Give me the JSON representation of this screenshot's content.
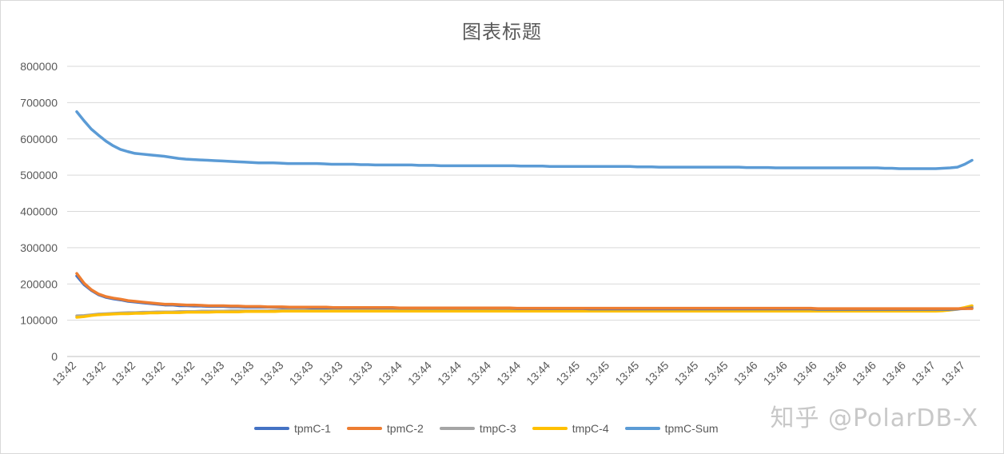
{
  "chart_data": {
    "type": "line",
    "title": "图表标题",
    "xlabel": "",
    "ylabel": "",
    "ylim": [
      0,
      800000
    ],
    "yticks": [
      0,
      100000,
      200000,
      300000,
      400000,
      500000,
      600000,
      700000,
      800000
    ],
    "tick_labels_x": [
      "13:42",
      "13:42",
      "13:42",
      "13:42",
      "13:42",
      "13:43",
      "13:43",
      "13:43",
      "13:43",
      "13:43",
      "13:43",
      "13:44",
      "13:44",
      "13:44",
      "13:44",
      "13:44",
      "13:44",
      "13:45",
      "13:45",
      "13:45",
      "13:45",
      "13:45",
      "13:45",
      "13:46",
      "13:46",
      "13:46",
      "13:46",
      "13:46",
      "13:46",
      "13:47",
      "13:47"
    ],
    "grid": true,
    "legend": "bottom",
    "series": [
      {
        "name": "tpmC-1",
        "color": "#4472C4",
        "values": [
          222000,
          198000,
          182000,
          170000,
          163000,
          159000,
          156000,
          152000,
          150000,
          148000,
          146000,
          144000,
          142000,
          142000,
          140000,
          140000,
          139000,
          139000,
          138000,
          138000,
          138000,
          137000,
          137000,
          136000,
          136000,
          136000,
          136000,
          136000,
          135000,
          135000,
          135000,
          135000,
          134000,
          134000,
          134000,
          134000,
          134000,
          134000,
          134000,
          134000,
          134000,
          134000,
          134000,
          134000,
          133000,
          133000,
          133000,
          133000,
          133000,
          133000,
          133000,
          133000,
          133000,
          133000,
          133000,
          133000,
          133000,
          133000,
          133000,
          133000,
          132000,
          132000,
          132000,
          132000,
          132000,
          132000,
          132000,
          132000,
          132000,
          132000,
          131000,
          131000,
          131000,
          131000,
          131000,
          131000,
          131000,
          131000,
          131000,
          131000,
          131000,
          131000,
          131000,
          131000,
          131000,
          131000,
          131000,
          131000,
          131000,
          131000,
          131000,
          131000,
          131000,
          131000,
          131000,
          131000,
          131000,
          131000,
          131000,
          131000,
          131000,
          130000,
          130000,
          130000,
          130000,
          130000,
          130000,
          130000,
          130000,
          130000,
          130000,
          130000,
          130000,
          130000,
          130000,
          130000,
          130000,
          130000,
          130000,
          130000,
          131000,
          132000,
          134000
        ]
      },
      {
        "name": "tpmC-2",
        "color": "#ED7D31",
        "values": [
          229000,
          202000,
          184000,
          172000,
          165000,
          161000,
          158000,
          154000,
          152000,
          150000,
          148000,
          146000,
          144000,
          144000,
          143000,
          142000,
          142000,
          141000,
          140000,
          140000,
          140000,
          139000,
          139000,
          138000,
          138000,
          138000,
          137000,
          137000,
          137000,
          136000,
          136000,
          136000,
          136000,
          136000,
          136000,
          135000,
          135000,
          135000,
          135000,
          135000,
          135000,
          135000,
          135000,
          135000,
          134000,
          134000,
          134000,
          134000,
          134000,
          134000,
          134000,
          134000,
          134000,
          134000,
          134000,
          134000,
          134000,
          134000,
          134000,
          134000,
          133000,
          133000,
          133000,
          133000,
          133000,
          133000,
          133000,
          133000,
          133000,
          133000,
          133000,
          133000,
          133000,
          133000,
          133000,
          133000,
          133000,
          133000,
          133000,
          133000,
          133000,
          133000,
          133000,
          133000,
          133000,
          133000,
          133000,
          133000,
          133000,
          133000,
          133000,
          133000,
          133000,
          133000,
          133000,
          133000,
          133000,
          133000,
          133000,
          133000,
          133000,
          132000,
          132000,
          132000,
          132000,
          132000,
          132000,
          132000,
          132000,
          132000,
          132000,
          132000,
          132000,
          132000,
          132000,
          132000,
          132000,
          132000,
          132000,
          132000,
          132000,
          132000,
          132000
        ]
      },
      {
        "name": "tmpC-3",
        "color": "#A5A5A5",
        "values": [
          112000,
          113000,
          115000,
          117000,
          118000,
          119000,
          120000,
          121000,
          121000,
          122000,
          122000,
          123000,
          123000,
          123000,
          124000,
          124000,
          124000,
          125000,
          125000,
          125000,
          125000,
          126000,
          126000,
          126000,
          126000,
          126000,
          126000,
          127000,
          127000,
          127000,
          127000,
          127000,
          127000,
          127000,
          127000,
          127000,
          127000,
          127000,
          127000,
          127000,
          127000,
          127000,
          127000,
          127000,
          127000,
          127000,
          127000,
          127000,
          127000,
          127000,
          127000,
          127000,
          127000,
          127000,
          127000,
          127000,
          127000,
          127000,
          127000,
          127000,
          127000,
          127000,
          127000,
          127000,
          127000,
          127000,
          127000,
          127000,
          127000,
          127000,
          127000,
          127000,
          127000,
          127000,
          127000,
          127000,
          127000,
          127000,
          127000,
          127000,
          127000,
          127000,
          127000,
          127000,
          127000,
          127000,
          127000,
          127000,
          127000,
          127000,
          127000,
          127000,
          127000,
          127000,
          127000,
          127000,
          127000,
          127000,
          127000,
          127000,
          127000,
          127000,
          127000,
          127000,
          127000,
          127000,
          127000,
          127000,
          127000,
          127000,
          127000,
          127000,
          127000,
          127000,
          127000,
          127000,
          127000,
          127000,
          127000,
          128000,
          130000,
          134000,
          139000
        ]
      },
      {
        "name": "tmpC-4",
        "color": "#FFC000",
        "values": [
          108000,
          110000,
          113000,
          115000,
          116000,
          117000,
          118000,
          118000,
          119000,
          119000,
          120000,
          120000,
          121000,
          121000,
          121000,
          122000,
          122000,
          122000,
          122000,
          123000,
          123000,
          123000,
          123000,
          124000,
          124000,
          124000,
          124000,
          124000,
          125000,
          125000,
          125000,
          125000,
          125000,
          125000,
          125000,
          125000,
          125000,
          125000,
          125000,
          125000,
          125000,
          125000,
          125000,
          125000,
          125000,
          125000,
          125000,
          125000,
          125000,
          125000,
          125000,
          125000,
          125000,
          125000,
          125000,
          125000,
          125000,
          125000,
          125000,
          125000,
          125000,
          125000,
          125000,
          125000,
          125000,
          125000,
          125000,
          125000,
          125000,
          125000,
          125000,
          125000,
          125000,
          125000,
          125000,
          125000,
          125000,
          125000,
          125000,
          125000,
          125000,
          125000,
          125000,
          125000,
          125000,
          125000,
          125000,
          125000,
          125000,
          125000,
          125000,
          125000,
          125000,
          125000,
          125000,
          125000,
          125000,
          125000,
          125000,
          125000,
          125000,
          125000,
          125000,
          125000,
          125000,
          125000,
          125000,
          125000,
          125000,
          125000,
          125000,
          125000,
          125000,
          125000,
          125000,
          125000,
          125000,
          125000,
          126000,
          128000,
          131000,
          135000,
          140000
        ]
      },
      {
        "name": "tpmC-Sum",
        "color": "#5B9BD5",
        "values": [
          675000,
          650000,
          627000,
          610000,
          594000,
          581000,
          571000,
          565000,
          560000,
          558000,
          556000,
          554000,
          552000,
          549000,
          546000,
          544000,
          543000,
          542000,
          541000,
          540000,
          539000,
          538000,
          537000,
          536000,
          535000,
          534000,
          534000,
          534000,
          533000,
          532000,
          532000,
          532000,
          532000,
          532000,
          531000,
          530000,
          530000,
          530000,
          530000,
          529000,
          529000,
          528000,
          528000,
          528000,
          528000,
          528000,
          528000,
          527000,
          527000,
          527000,
          526000,
          526000,
          526000,
          526000,
          526000,
          526000,
          526000,
          526000,
          526000,
          526000,
          526000,
          525000,
          525000,
          525000,
          525000,
          524000,
          524000,
          524000,
          524000,
          524000,
          524000,
          524000,
          524000,
          524000,
          524000,
          524000,
          524000,
          523000,
          523000,
          523000,
          522000,
          522000,
          522000,
          522000,
          522000,
          522000,
          522000,
          522000,
          522000,
          522000,
          522000,
          522000,
          521000,
          521000,
          521000,
          521000,
          520000,
          520000,
          520000,
          520000,
          520000,
          520000,
          520000,
          520000,
          520000,
          520000,
          520000,
          520000,
          520000,
          520000,
          520000,
          519000,
          519000,
          518000,
          518000,
          518000,
          518000,
          518000,
          518000,
          519000,
          520000,
          522000,
          530000,
          541000
        ]
      }
    ]
  },
  "watermark": "知乎 @PolarDB-X"
}
